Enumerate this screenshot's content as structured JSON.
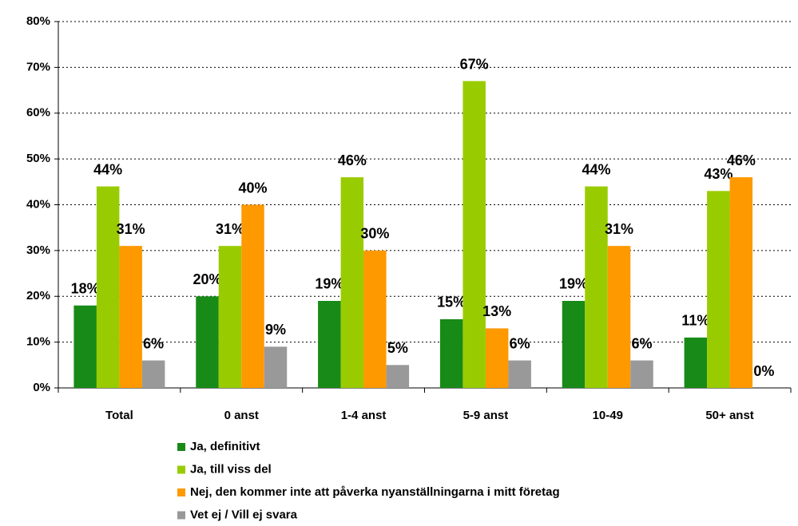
{
  "chart_data": {
    "type": "bar",
    "categories": [
      "Total",
      "0 anst",
      "1-4 anst",
      "5-9 anst",
      "10-49",
      "50+ anst"
    ],
    "series": [
      {
        "name": "Ja, definitivt",
        "color": "#188a18",
        "values": [
          18,
          20,
          19,
          15,
          19,
          11
        ],
        "value_labels": [
          "18%",
          "20%",
          "19%",
          "15%",
          "19%",
          "11%"
        ]
      },
      {
        "name": "Ja, till viss del",
        "color": "#99cc00",
        "values": [
          44,
          31,
          46,
          67,
          44,
          43
        ],
        "value_labels": [
          "44%",
          "31%",
          "46%",
          "67%",
          "44%",
          "43%"
        ]
      },
      {
        "name": "Nej, den kommer inte att påverka nyanställningarna i mitt företag",
        "color": "#ff9900",
        "values": [
          31,
          40,
          30,
          13,
          31,
          46
        ],
        "value_labels": [
          "31%",
          "40%",
          "30%",
          "13%",
          "31%",
          "46%"
        ]
      },
      {
        "name": "Vet ej / Vill ej svara",
        "color": "#999999",
        "values": [
          6,
          9,
          5,
          6,
          6,
          0
        ],
        "value_labels": [
          "6%",
          "9%",
          "5%",
          "6%",
          "6%",
          "0%"
        ]
      }
    ],
    "ylim": [
      0,
      80
    ],
    "yticks": [
      {
        "value": 0,
        "label": "0%"
      },
      {
        "value": 10,
        "label": "10%"
      },
      {
        "value": 20,
        "label": "20%"
      },
      {
        "value": 30,
        "label": "30%"
      },
      {
        "value": 40,
        "label": "40%"
      },
      {
        "value": 50,
        "label": "50%"
      },
      {
        "value": 60,
        "label": "60%"
      },
      {
        "value": 70,
        "label": "70%"
      },
      {
        "value": 80,
        "label": "80%"
      }
    ],
    "grid": true
  }
}
